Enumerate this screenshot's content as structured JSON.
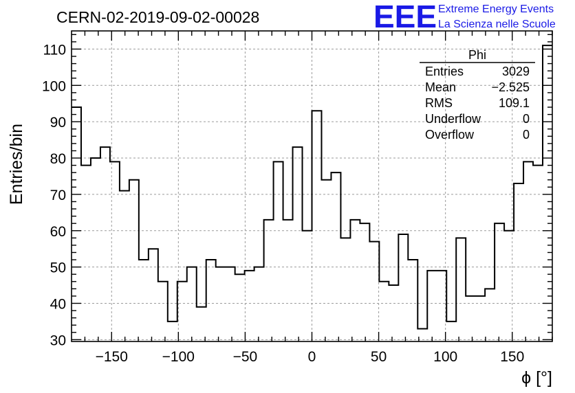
{
  "chart_data": {
    "type": "histogram",
    "title": "CERN-02-2019-09-02-00028",
    "xlabel": "ϕ [°]",
    "ylabel": "Entries/bin",
    "xlim": [
      -180,
      180
    ],
    "ylim": [
      29.5,
      115
    ],
    "bin_width": 7.2,
    "x_ticks": [
      -150,
      -100,
      -50,
      0,
      50,
      100,
      150
    ],
    "x_tick_labels": [
      "−150",
      "−100",
      "−50",
      "0",
      "50",
      "100",
      "150"
    ],
    "y_ticks": [
      30,
      40,
      50,
      60,
      70,
      80,
      90,
      100,
      110
    ],
    "y_tick_labels": [
      "30",
      "40",
      "50",
      "60",
      "70",
      "80",
      "90",
      "100",
      "110"
    ],
    "grid": true,
    "values": [
      94,
      78,
      80,
      83,
      79,
      71,
      74,
      52,
      55,
      46,
      35,
      46,
      50,
      39,
      52,
      50,
      50,
      48,
      49,
      50,
      63,
      79,
      63,
      83,
      60,
      93,
      74,
      76,
      58,
      63,
      62,
      57,
      46,
      45,
      59,
      52,
      33,
      49,
      49,
      35,
      58,
      42,
      42,
      44,
      62,
      60,
      73,
      79,
      78,
      111
    ],
    "stats_box": {
      "title": "Phi",
      "rows": [
        {
          "label": "Entries",
          "value": "3029"
        },
        {
          "label": "Mean",
          "value": "−2.525"
        },
        {
          "label": "RMS",
          "value": "109.1"
        },
        {
          "label": "Underflow",
          "value": "0"
        },
        {
          "label": "Overflow",
          "value": "0"
        }
      ]
    },
    "branding": {
      "logo": "EEE",
      "line1": "Extreme Energy Events",
      "line2": "La Scienza nelle Scuole"
    }
  }
}
